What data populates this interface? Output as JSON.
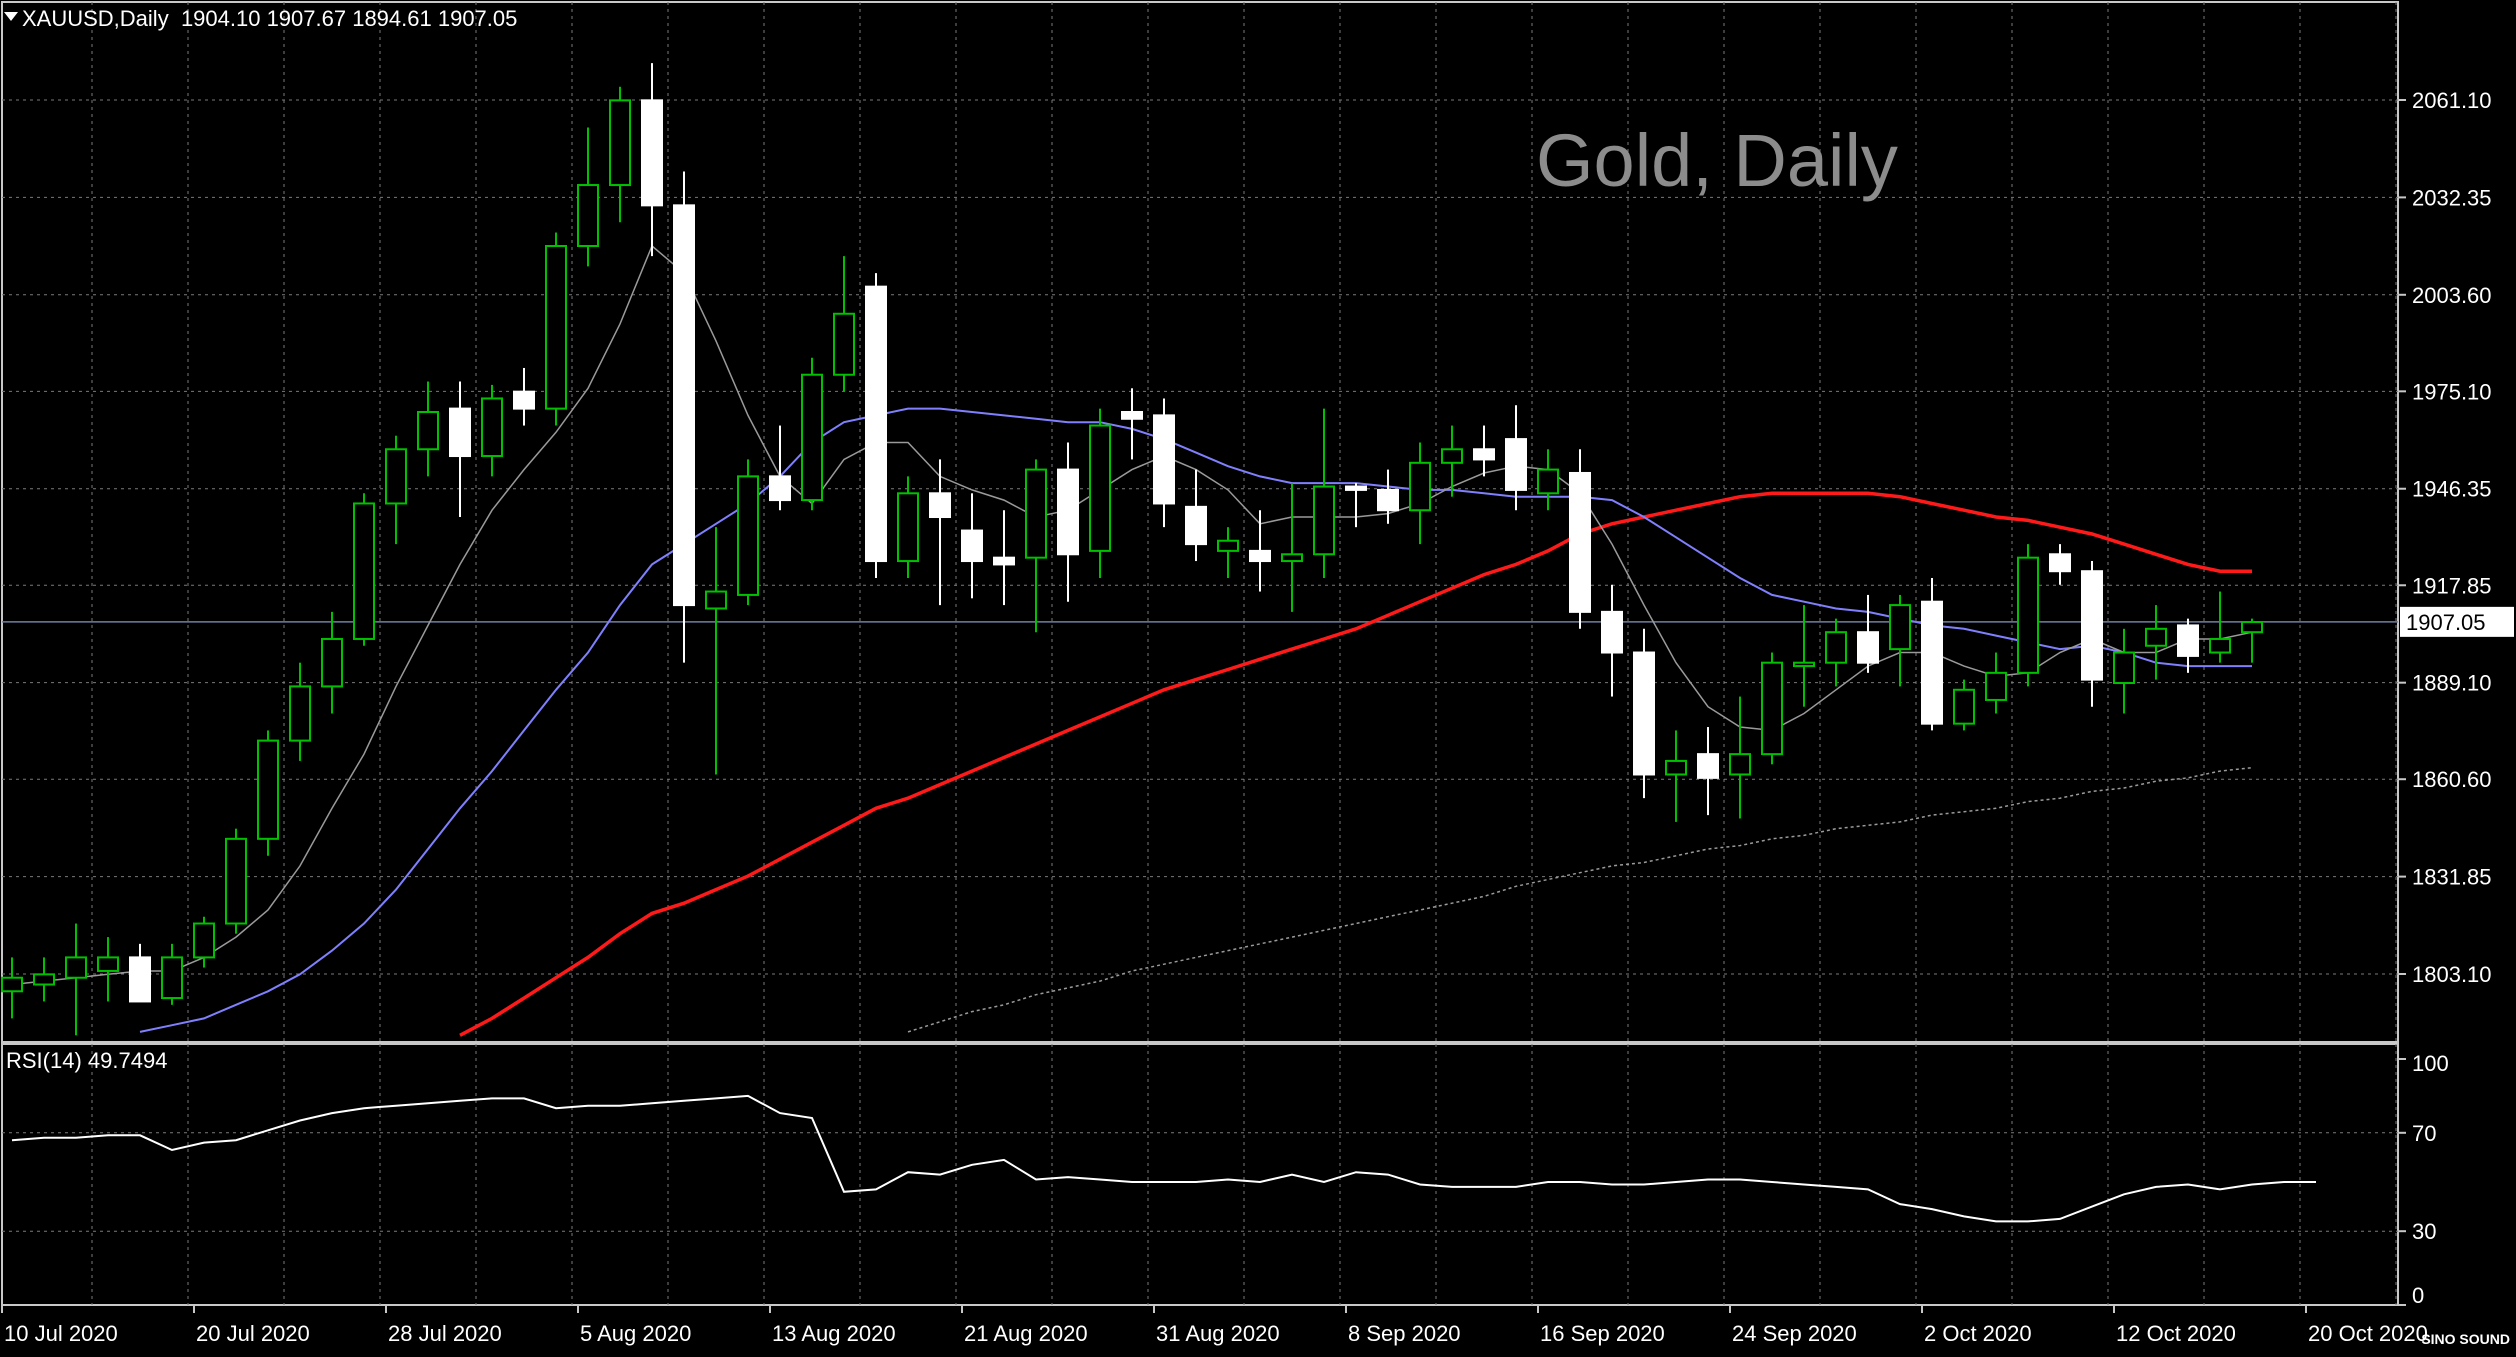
{
  "header": {
    "symbol": "XAUUSD,Daily",
    "ohlc": "1904.10 1907.67 1894.61 1907.05"
  },
  "watermark": "Gold, Daily",
  "brand": "SINO SOUND",
  "current_price_label": "1907.05",
  "colors": {
    "background": "#000000",
    "grid": "#7a7a7a",
    "bull": "#00c000",
    "bear": "#ffffff",
    "ma_fast": "#9a9a9a",
    "ma_mid": "#8080ff",
    "ma_slow": "#ff1a1a",
    "ma_long": "#9a9a9a",
    "rsi": "#ffffff"
  },
  "chart_data": [
    {
      "type": "candlestick",
      "title": "Gold, Daily",
      "price_axis_ticks": [
        "2061.10",
        "2032.35",
        "2003.60",
        "1975.10",
        "1946.35",
        "1917.85",
        "1889.10",
        "1860.60",
        "1831.85",
        "1803.10"
      ],
      "date_axis_ticks": [
        "10 Jul 2020",
        "20 Jul 2020",
        "28 Jul 2020",
        "5 Aug 2020",
        "13 Aug 2020",
        "21 Aug 2020",
        "31 Aug 2020",
        "8 Sep 2020",
        "16 Sep 2020",
        "24 Sep 2020",
        "2 Oct 2020",
        "12 Oct 2020",
        "20 Oct 2020"
      ],
      "ylim": [
        1785,
        2075
      ],
      "current_price": 1907.05,
      "candles": [
        {
          "o": 1798,
          "h": 1808,
          "l": 1790,
          "c": 1802
        },
        {
          "o": 1800,
          "h": 1808,
          "l": 1795,
          "c": 1803
        },
        {
          "o": 1802,
          "h": 1818,
          "l": 1785,
          "c": 1808
        },
        {
          "o": 1804,
          "h": 1814,
          "l": 1795,
          "c": 1808
        },
        {
          "o": 1808,
          "h": 1812,
          "l": 1797,
          "c": 1795
        },
        {
          "o": 1796,
          "h": 1812,
          "l": 1794,
          "c": 1808
        },
        {
          "o": 1808,
          "h": 1820,
          "l": 1805,
          "c": 1818
        },
        {
          "o": 1818,
          "h": 1846,
          "l": 1815,
          "c": 1843
        },
        {
          "o": 1843,
          "h": 1875,
          "l": 1838,
          "c": 1872
        },
        {
          "o": 1872,
          "h": 1895,
          "l": 1866,
          "c": 1888
        },
        {
          "o": 1888,
          "h": 1910,
          "l": 1880,
          "c": 1902
        },
        {
          "o": 1902,
          "h": 1945,
          "l": 1900,
          "c": 1942
        },
        {
          "o": 1942,
          "h": 1962,
          "l": 1930,
          "c": 1958
        },
        {
          "o": 1958,
          "h": 1978,
          "l": 1950,
          "c": 1969
        },
        {
          "o": 1970,
          "h": 1978,
          "l": 1938,
          "c": 1956
        },
        {
          "o": 1956,
          "h": 1977,
          "l": 1950,
          "c": 1973
        },
        {
          "o": 1975,
          "h": 1982,
          "l": 1965,
          "c": 1970
        },
        {
          "o": 1970,
          "h": 2022,
          "l": 1965,
          "c": 2018
        },
        {
          "o": 2018,
          "h": 2053,
          "l": 2012,
          "c": 2036
        },
        {
          "o": 2036,
          "h": 2065,
          "l": 2025,
          "c": 2061
        },
        {
          "o": 2061,
          "h": 2072,
          "l": 2015,
          "c": 2030
        },
        {
          "o": 2030,
          "h": 2040,
          "l": 1895,
          "c": 1912
        },
        {
          "o": 1911,
          "h": 1935,
          "l": 1862,
          "c": 1916
        },
        {
          "o": 1915,
          "h": 1955,
          "l": 1912,
          "c": 1950
        },
        {
          "o": 1950,
          "h": 1965,
          "l": 1940,
          "c": 1943
        },
        {
          "o": 1943,
          "h": 1985,
          "l": 1940,
          "c": 1980
        },
        {
          "o": 1980,
          "h": 2015,
          "l": 1975,
          "c": 1998
        },
        {
          "o": 2006,
          "h": 2010,
          "l": 1920,
          "c": 1925
        },
        {
          "o": 1925,
          "h": 1950,
          "l": 1920,
          "c": 1945
        },
        {
          "o": 1945,
          "h": 1955,
          "l": 1912,
          "c": 1938
        },
        {
          "o": 1934,
          "h": 1945,
          "l": 1914,
          "c": 1925
        },
        {
          "o": 1926,
          "h": 1940,
          "l": 1912,
          "c": 1924
        },
        {
          "o": 1926,
          "h": 1955,
          "l": 1904,
          "c": 1952
        },
        {
          "o": 1952,
          "h": 1960,
          "l": 1913,
          "c": 1927
        },
        {
          "o": 1928,
          "h": 1970,
          "l": 1920,
          "c": 1965
        },
        {
          "o": 1969,
          "h": 1976,
          "l": 1955,
          "c": 1967
        },
        {
          "o": 1968,
          "h": 1973,
          "l": 1935,
          "c": 1942
        },
        {
          "o": 1941,
          "h": 1952,
          "l": 1925,
          "c": 1930
        },
        {
          "o": 1928,
          "h": 1935,
          "l": 1920,
          "c": 1931
        },
        {
          "o": 1928,
          "h": 1940,
          "l": 1916,
          "c": 1925
        },
        {
          "o": 1925,
          "h": 1948,
          "l": 1910,
          "c": 1927
        },
        {
          "o": 1927,
          "h": 1970,
          "l": 1920,
          "c": 1947
        },
        {
          "o": 1947,
          "h": 1948,
          "l": 1935,
          "c": 1946
        },
        {
          "o": 1946,
          "h": 1952,
          "l": 1936,
          "c": 1940
        },
        {
          "o": 1940,
          "h": 1960,
          "l": 1930,
          "c": 1954
        },
        {
          "o": 1954,
          "h": 1965,
          "l": 1944,
          "c": 1958
        },
        {
          "o": 1958,
          "h": 1965,
          "l": 1950,
          "c": 1955
        },
        {
          "o": 1961,
          "h": 1971,
          "l": 1940,
          "c": 1946
        },
        {
          "o": 1945,
          "h": 1958,
          "l": 1940,
          "c": 1952
        },
        {
          "o": 1951,
          "h": 1958,
          "l": 1905,
          "c": 1910
        },
        {
          "o": 1910,
          "h": 1918,
          "l": 1885,
          "c": 1898
        },
        {
          "o": 1898,
          "h": 1905,
          "l": 1855,
          "c": 1862
        },
        {
          "o": 1862,
          "h": 1875,
          "l": 1848,
          "c": 1866
        },
        {
          "o": 1868,
          "h": 1876,
          "l": 1850,
          "c": 1861
        },
        {
          "o": 1862,
          "h": 1885,
          "l": 1849,
          "c": 1868
        },
        {
          "o": 1868,
          "h": 1898,
          "l": 1865,
          "c": 1895
        },
        {
          "o": 1894,
          "h": 1912,
          "l": 1882,
          "c": 1895
        },
        {
          "o": 1895,
          "h": 1908,
          "l": 1888,
          "c": 1904
        },
        {
          "o": 1904,
          "h": 1915,
          "l": 1892,
          "c": 1895
        },
        {
          "o": 1899,
          "h": 1915,
          "l": 1888,
          "c": 1912
        },
        {
          "o": 1913,
          "h": 1920,
          "l": 1875,
          "c": 1877
        },
        {
          "o": 1877,
          "h": 1890,
          "l": 1875,
          "c": 1887
        },
        {
          "o": 1884,
          "h": 1898,
          "l": 1880,
          "c": 1892
        },
        {
          "o": 1892,
          "h": 1930,
          "l": 1888,
          "c": 1926
        },
        {
          "o": 1927,
          "h": 1930,
          "l": 1918,
          "c": 1922
        },
        {
          "o": 1922,
          "h": 1925,
          "l": 1882,
          "c": 1890
        },
        {
          "o": 1889,
          "h": 1905,
          "l": 1880,
          "c": 1898
        },
        {
          "o": 1900,
          "h": 1912,
          "l": 1890,
          "c": 1905
        },
        {
          "o": 1906,
          "h": 1908,
          "l": 1892,
          "c": 1897
        },
        {
          "o": 1898,
          "h": 1916,
          "l": 1895,
          "c": 1902
        },
        {
          "o": 1904,
          "h": 1908,
          "l": 1895,
          "c": 1907
        }
      ],
      "ma_fast": [
        1800,
        1801,
        1802,
        1803,
        1804,
        1804,
        1808,
        1814,
        1822,
        1835,
        1852,
        1868,
        1888,
        1906,
        1924,
        1940,
        1952,
        1963,
        1976,
        1995,
        2018,
        2010,
        1990,
        1968,
        1950,
        1942,
        1955,
        1960,
        1960,
        1950,
        1946,
        1943,
        1938,
        1940,
        1946,
        1952,
        1956,
        1952,
        1946,
        1936,
        1938,
        1938,
        1938,
        1939,
        1942,
        1947,
        1951,
        1953,
        1952,
        1945,
        1930,
        1912,
        1895,
        1882,
        1876,
        1875,
        1880,
        1887,
        1894,
        1898,
        1898,
        1894,
        1891,
        1892,
        1898,
        1902,
        1898,
        1898,
        1902,
        1902,
        1904
      ],
      "ma_mid": [
        null,
        null,
        null,
        null,
        1786,
        1788,
        1790,
        1794,
        1798,
        1803,
        1810,
        1818,
        1828,
        1840,
        1852,
        1863,
        1875,
        1887,
        1898,
        1912,
        1924,
        1930,
        1936,
        1942,
        1950,
        1960,
        1966,
        1968,
        1970,
        1970,
        1969,
        1968,
        1967,
        1966,
        1966,
        1964,
        1961,
        1957,
        1953,
        1950,
        1948,
        1948,
        1948,
        1947,
        1946,
        1946,
        1945,
        1944,
        1944,
        1944,
        1943,
        1938,
        1932,
        1926,
        1920,
        1915,
        1913,
        1911,
        1910,
        1908,
        1906,
        1905,
        1903,
        1901,
        1899,
        1900,
        1898,
        1895,
        1894,
        1894,
        1894
      ],
      "ma_slow": [
        null,
        null,
        null,
        null,
        null,
        null,
        null,
        null,
        null,
        null,
        null,
        null,
        null,
        null,
        1785,
        1790,
        1796,
        1802,
        1808,
        1815,
        1821,
        1824,
        1828,
        1832,
        1837,
        1842,
        1847,
        1852,
        1855,
        1859,
        1863,
        1867,
        1871,
        1875,
        1879,
        1883,
        1887,
        1890,
        1893,
        1896,
        1899,
        1902,
        1905,
        1909,
        1913,
        1917,
        1921,
        1924,
        1928,
        1933,
        1936,
        1938,
        1940,
        1942,
        1944,
        1945,
        1945,
        1945,
        1945,
        1944,
        1942,
        1940,
        1938,
        1937,
        1935,
        1933,
        1930,
        1927,
        1924,
        1922,
        1922
      ],
      "ma_long": [
        null,
        null,
        null,
        null,
        null,
        null,
        null,
        null,
        null,
        null,
        null,
        null,
        null,
        null,
        null,
        null,
        null,
        null,
        null,
        null,
        null,
        null,
        null,
        null,
        null,
        null,
        null,
        null,
        1786,
        1789,
        1792,
        1794,
        1797,
        1799,
        1801,
        1804,
        1806,
        1808,
        1810,
        1812,
        1814,
        1816,
        1818,
        1820,
        1822,
        1824,
        1826,
        1829,
        1831,
        1833,
        1835,
        1836,
        1838,
        1840,
        1841,
        1843,
        1844,
        1846,
        1847,
        1848,
        1850,
        1851,
        1852,
        1854,
        1855,
        1857,
        1858,
        1860,
        1861,
        1863,
        1864
      ]
    },
    {
      "type": "line",
      "title": "RSI(14) 49.7494",
      "ylim": [
        0,
        100
      ],
      "ticks": [
        "100",
        "70",
        "30",
        "0"
      ],
      "values": [
        67,
        68,
        68,
        69,
        69,
        63,
        66,
        67,
        71,
        75,
        78,
        80,
        81,
        82,
        83,
        84,
        84,
        80,
        81,
        81,
        82,
        83,
        84,
        85,
        78,
        76,
        46,
        47,
        54,
        53,
        57,
        59,
        51,
        52,
        51,
        50,
        50,
        50,
        51,
        50,
        53,
        50,
        54,
        53,
        49,
        48,
        48,
        48,
        50,
        50,
        49,
        49,
        50,
        51,
        51,
        50,
        49,
        48,
        47,
        41,
        39,
        36,
        34,
        34,
        35,
        40,
        45,
        48,
        49,
        47,
        49,
        50,
        50
      ]
    }
  ]
}
